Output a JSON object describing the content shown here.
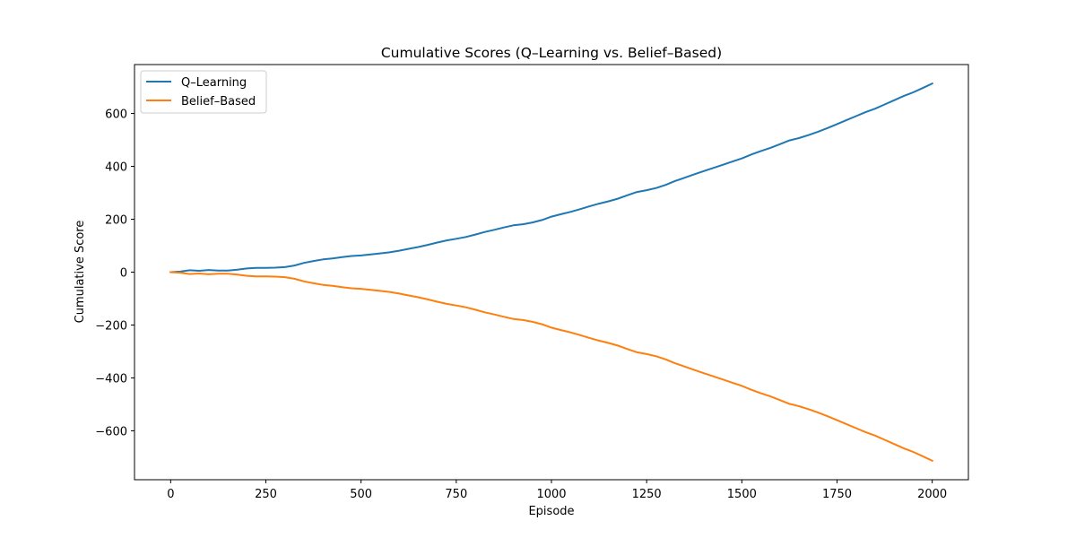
{
  "chart_data": {
    "type": "line",
    "title": "Cumulative Scores (Q–Learning vs. Belief–Based)",
    "xlabel": "Episode",
    "ylabel": "Cumulative Score",
    "xlim": [
      -95,
      2095
    ],
    "ylim": [
      -785,
      785
    ],
    "xticks": [
      0,
      250,
      500,
      750,
      1000,
      1250,
      1500,
      1750,
      2000
    ],
    "yticks": [
      -600,
      -400,
      -200,
      0,
      200,
      400,
      600
    ],
    "xtick_labels": [
      "0",
      "250",
      "500",
      "750",
      "1000",
      "1250",
      "1500",
      "1750",
      "2000"
    ],
    "ytick_labels": [
      "−600",
      "−400",
      "−200",
      "0",
      "200",
      "400",
      "600"
    ],
    "grid": false,
    "legend_position": "upper-left",
    "x": [
      0,
      25,
      50,
      75,
      100,
      125,
      150,
      175,
      200,
      225,
      250,
      275,
      300,
      325,
      350,
      375,
      400,
      425,
      450,
      475,
      500,
      525,
      550,
      575,
      600,
      625,
      650,
      675,
      700,
      725,
      750,
      775,
      800,
      825,
      850,
      875,
      900,
      925,
      950,
      975,
      1000,
      1025,
      1050,
      1075,
      1100,
      1125,
      1150,
      1175,
      1200,
      1225,
      1250,
      1275,
      1300,
      1325,
      1350,
      1375,
      1400,
      1425,
      1450,
      1475,
      1500,
      1525,
      1550,
      1575,
      1600,
      1625,
      1650,
      1675,
      1700,
      1725,
      1750,
      1775,
      1800,
      1825,
      1850,
      1875,
      1900,
      1925,
      1950,
      1975,
      2000
    ],
    "series": [
      {
        "name": "Q–Learning",
        "color": "#1f77b4",
        "values": [
          0,
          2,
          7,
          5,
          8,
          6,
          6,
          9,
          14,
          16,
          16,
          17,
          19,
          25,
          35,
          42,
          48,
          52,
          57,
          61,
          63,
          67,
          71,
          75,
          81,
          88,
          95,
          103,
          112,
          120,
          126,
          133,
          142,
          152,
          160,
          169,
          177,
          181,
          188,
          197,
          210,
          219,
          228,
          238,
          249,
          259,
          268,
          278,
          291,
          303,
          310,
          318,
          330,
          345,
          357,
          370,
          382,
          394,
          406,
          418,
          430,
          445,
          458,
          470,
          484,
          498,
          507,
          518,
          531,
          545,
          560,
          575,
          590,
          605,
          618,
          634,
          650,
          666,
          680,
          696,
          713
        ]
      },
      {
        "name": "Belief–Based",
        "color": "#ff7f0e",
        "values": [
          0,
          -2,
          -7,
          -5,
          -8,
          -6,
          -6,
          -9,
          -14,
          -16,
          -16,
          -17,
          -19,
          -25,
          -35,
          -42,
          -48,
          -52,
          -57,
          -61,
          -63,
          -67,
          -71,
          -75,
          -81,
          -88,
          -95,
          -103,
          -112,
          -120,
          -126,
          -133,
          -142,
          -152,
          -160,
          -169,
          -177,
          -181,
          -188,
          -197,
          -210,
          -219,
          -228,
          -238,
          -249,
          -259,
          -268,
          -278,
          -291,
          -303,
          -310,
          -318,
          -330,
          -345,
          -357,
          -370,
          -382,
          -394,
          -406,
          -418,
          -430,
          -445,
          -458,
          -470,
          -484,
          -498,
          -507,
          -518,
          -531,
          -545,
          -560,
          -575,
          -590,
          -605,
          -618,
          -634,
          -650,
          -666,
          -680,
          -696,
          -713
        ]
      }
    ]
  }
}
